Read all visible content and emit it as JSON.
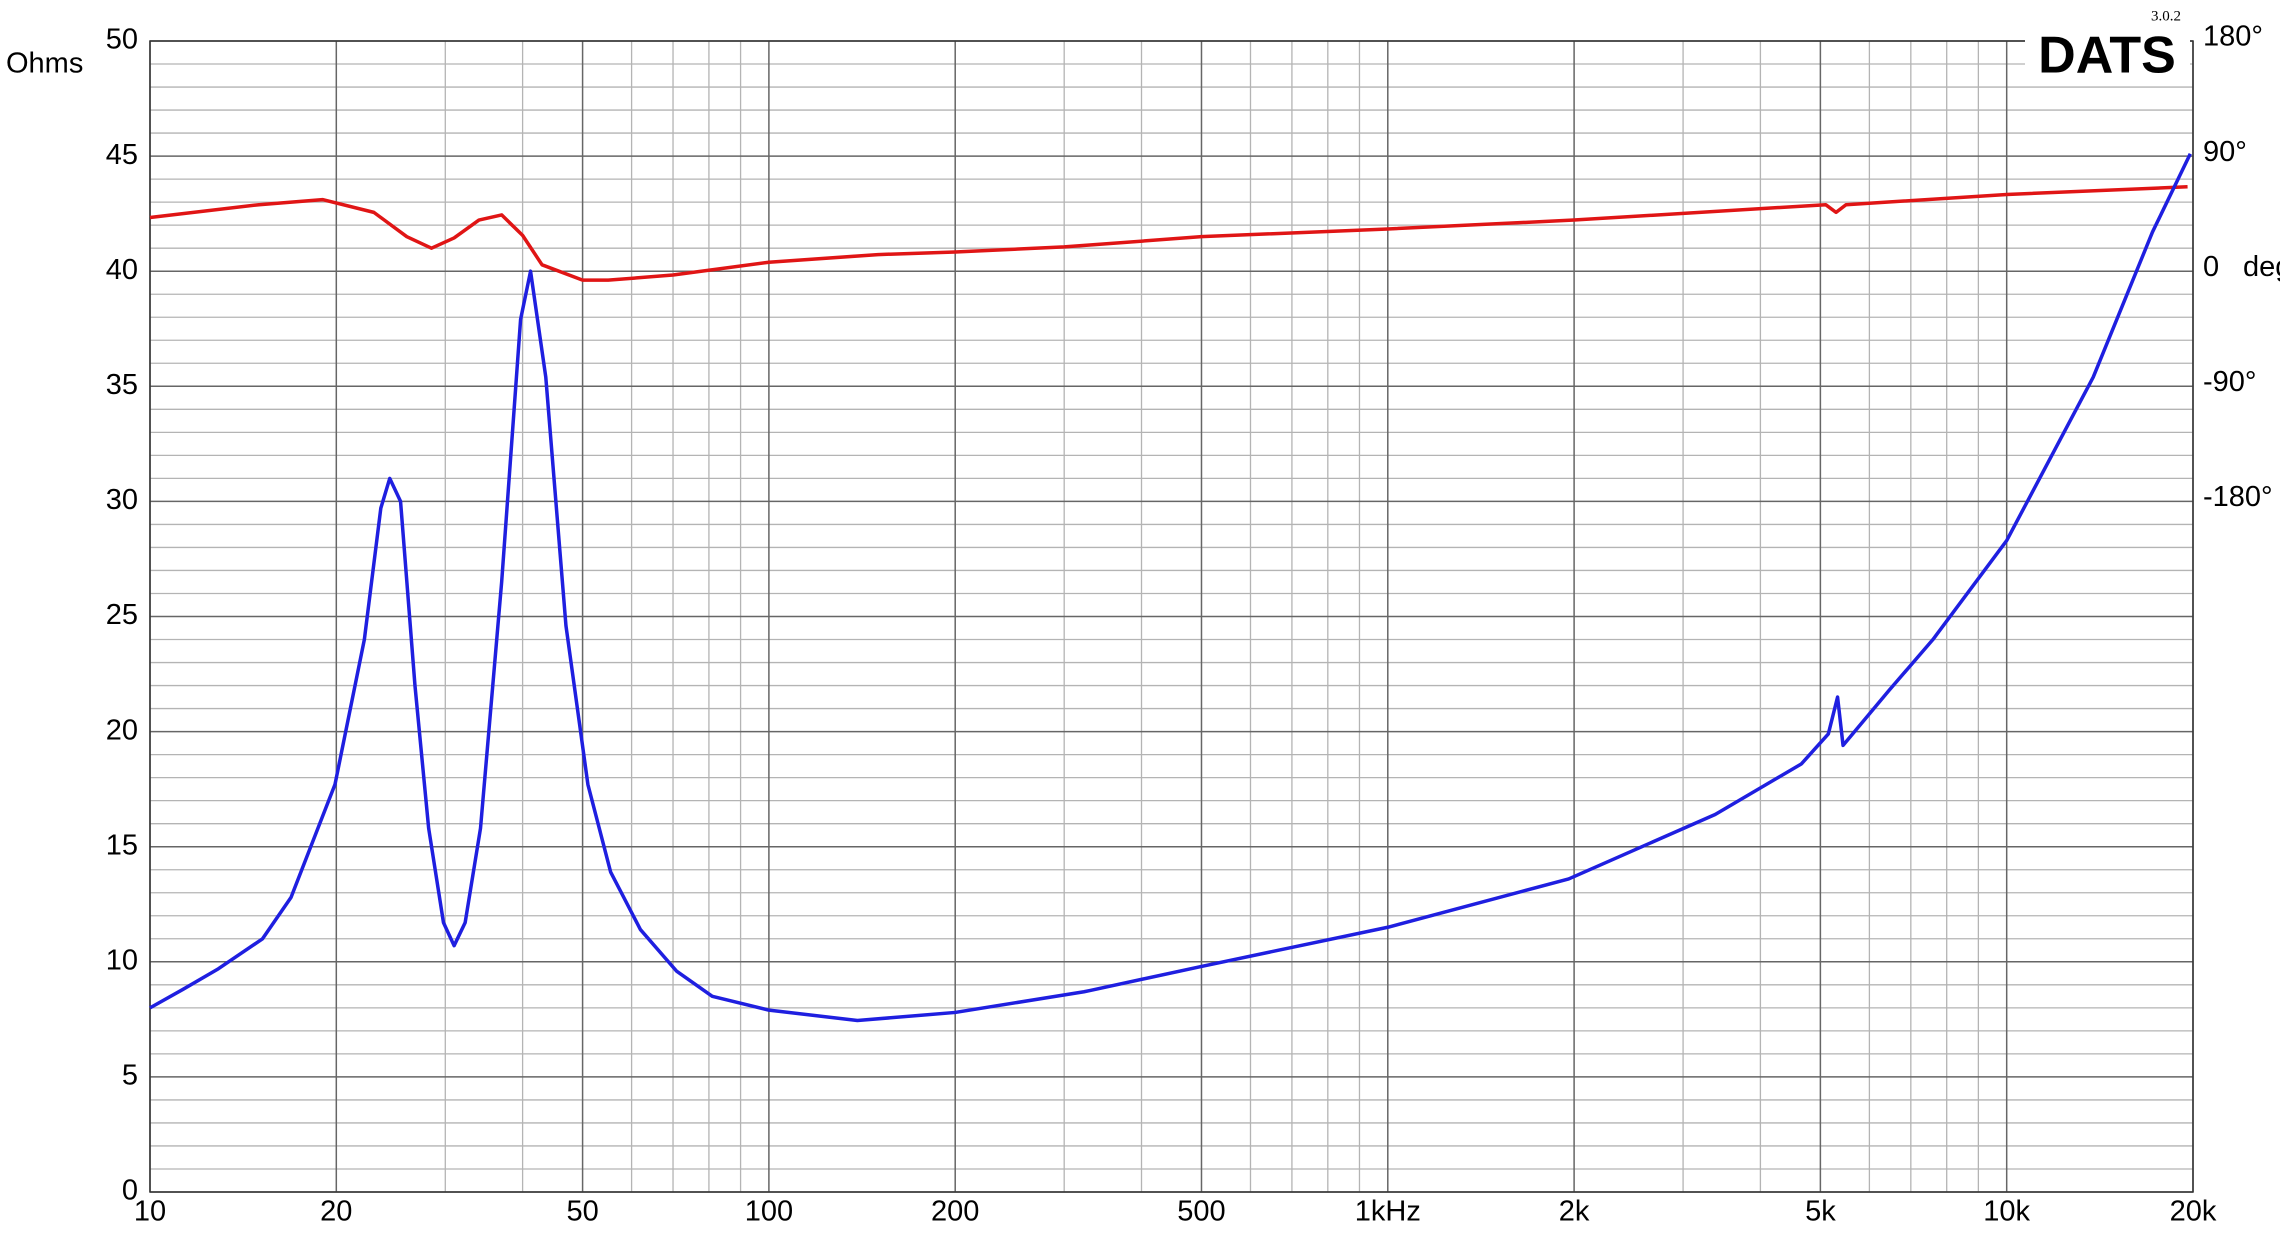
{
  "chart_data": {
    "type": "line",
    "logo": "DATS",
    "version": "3.0.2",
    "y_label": "Ohms",
    "y2_label": "deg",
    "xscale": "log",
    "grid": true,
    "xlim": [
      10,
      20000
    ],
    "xticks": [
      10,
      20,
      50,
      100,
      200,
      500,
      {
        "value": 1000,
        "label": "1kHz"
      },
      {
        "value": 2000,
        "label": "2k"
      },
      {
        "value": 5000,
        "label": "5k"
      },
      {
        "value": 10000,
        "label": "10k"
      },
      {
        "value": 20000,
        "label": "20k"
      }
    ],
    "xminorticks": [
      30,
      40,
      60,
      70,
      80,
      90,
      300,
      400,
      600,
      700,
      800,
      900,
      3000,
      4000,
      6000,
      7000,
      8000,
      9000
    ],
    "ylim": [
      0,
      50
    ],
    "yticks": [
      0,
      5,
      10,
      15,
      20,
      25,
      30,
      35,
      40,
      45,
      50
    ],
    "yminorticks": [
      1,
      2,
      3,
      4,
      6,
      7,
      8,
      9,
      11,
      12,
      13,
      14,
      16,
      17,
      18,
      19,
      21,
      22,
      23,
      24,
      26,
      27,
      28,
      29,
      31,
      32,
      33,
      34,
      36,
      37,
      38,
      39,
      41,
      42,
      43,
      44,
      46,
      47,
      48,
      49
    ],
    "y2lim": [
      -720,
      180
    ],
    "y2ticks": [
      {
        "value": 180,
        "label": "180°"
      },
      {
        "value": 90,
        "label": "90°"
      },
      0,
      {
        "value": -90,
        "label": "-90°"
      },
      {
        "value": -180,
        "label": "-180°"
      }
    ],
    "series": [
      {
        "color": "#1f1fe0",
        "axis": "y",
        "x": [
          10,
          11.3,
          12.9,
          15.2,
          16.9,
          19.9,
          22.2,
          23.6,
          24.4,
          25.4,
          26.8,
          28.2,
          29.8,
          31,
          32.3,
          34.2,
          37,
          39.7,
          41.2,
          43.6,
          47,
          51,
          55.5,
          62,
          70.9,
          81,
          100,
          139,
          200,
          323,
          330,
          500,
          1000,
          1960,
          3380,
          4660,
          5150,
          5330,
          5440,
          6460,
          7600,
          10000,
          13800,
          17200,
          19800
        ],
        "values": [
          8.0,
          8.8,
          9.7,
          11.0,
          12.8,
          17.7,
          24.0,
          29.7,
          31.0,
          30.0,
          22.0,
          15.8,
          11.7,
          10.7,
          11.7,
          15.8,
          26.5,
          37.9,
          40.0,
          35.4,
          24.6,
          17.7,
          13.9,
          11.4,
          9.6,
          8.5,
          7.9,
          7.45,
          7.8,
          8.7,
          8.75,
          9.8,
          11.5,
          13.6,
          16.4,
          18.6,
          19.9,
          21.5,
          19.4,
          21.8,
          24.0,
          28.3,
          35.4,
          41.7,
          45.1
        ]
      },
      {
        "color": "#e01515",
        "axis": "y2",
        "x": [
          10,
          15,
          19,
          23,
          26,
          28.5,
          31,
          34,
          37,
          40,
          43,
          50,
          55,
          70,
          100,
          150,
          200,
          300,
          500,
          1000,
          2000,
          5100,
          5300,
          5500,
          10000,
          19600
        ],
        "values": [
          42,
          52,
          56,
          46,
          27,
          18,
          26,
          40,
          44,
          28,
          5,
          -7,
          -7,
          -3,
          7,
          13,
          15,
          19,
          27,
          33,
          40,
          52,
          46,
          52,
          60,
          66
        ]
      }
    ]
  }
}
